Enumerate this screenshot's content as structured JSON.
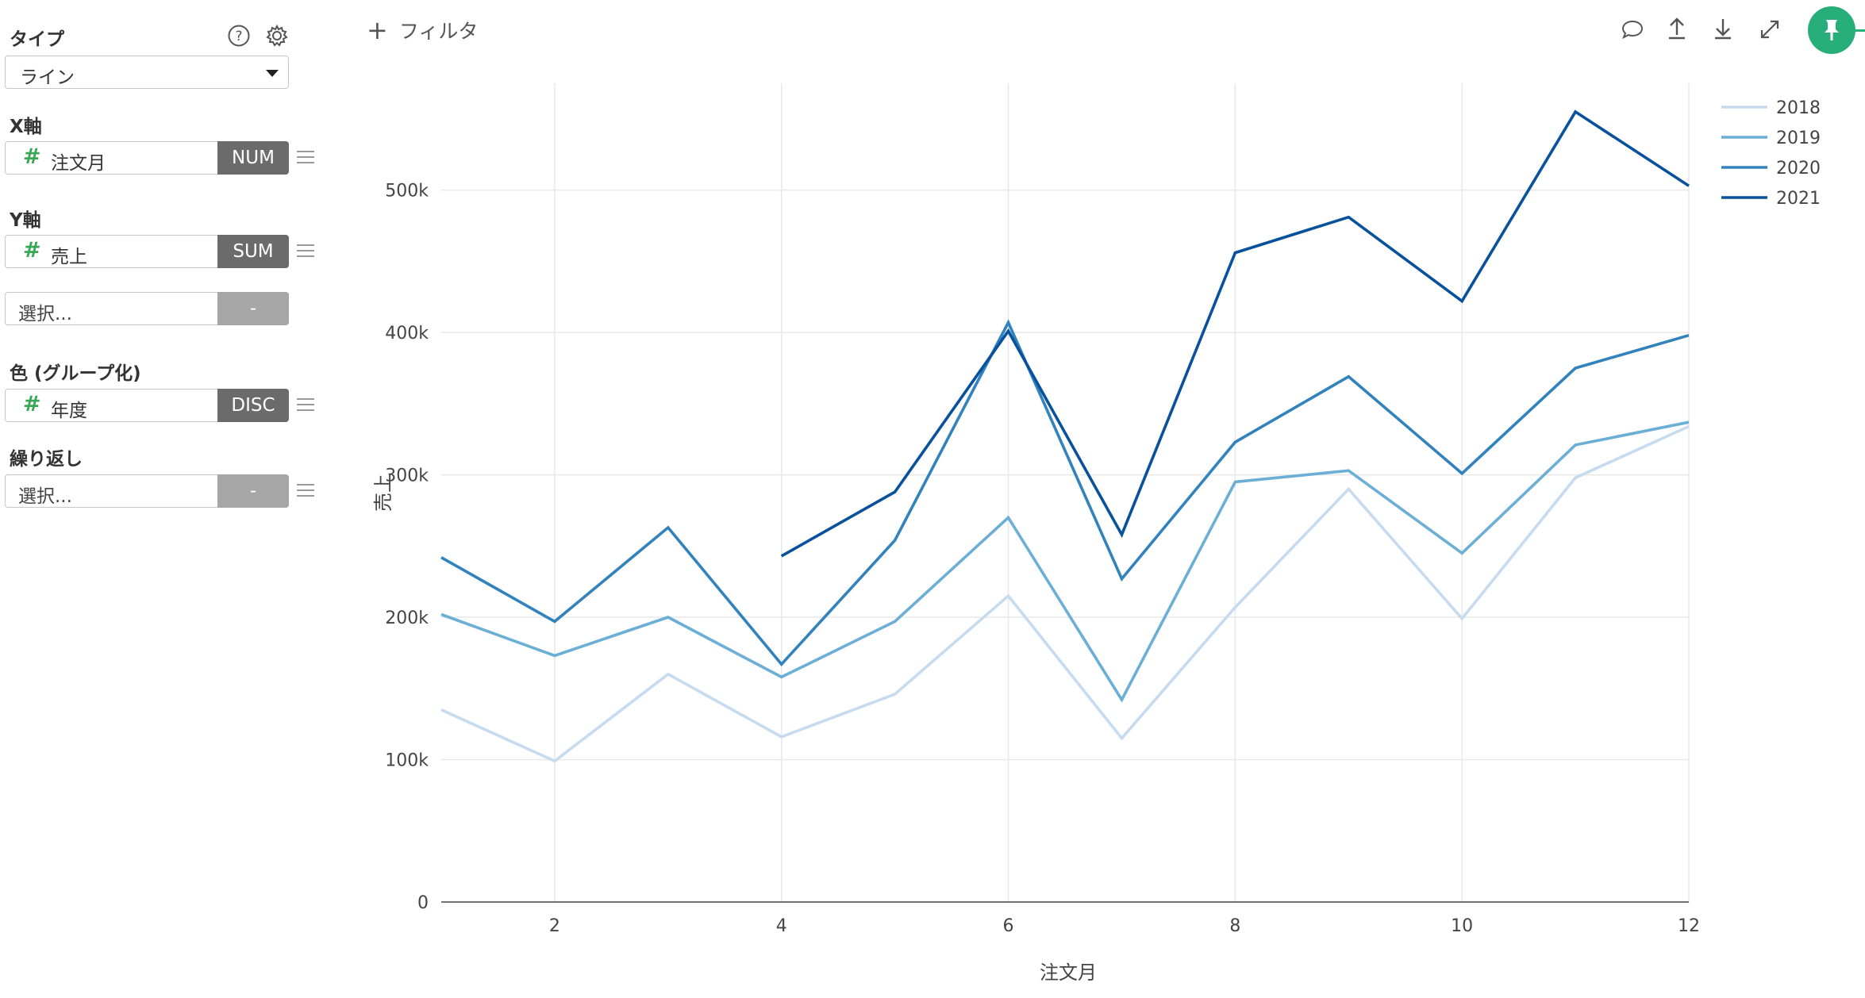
{
  "panel": {
    "type_label": "タイプ",
    "type_value": "ライン",
    "x_axis": {
      "label": "X軸",
      "field": "注文月",
      "agg": "NUM"
    },
    "y_axis": {
      "label": "Y軸",
      "field": "売上",
      "agg": "SUM"
    },
    "y_axis_extra": {
      "placeholder": "選択...",
      "agg": "-"
    },
    "color": {
      "label": "色 (グループ化)",
      "field": "年度",
      "agg": "DISC"
    },
    "repeat": {
      "label": "繰り返し",
      "placeholder": "選択...",
      "agg": "-"
    },
    "icons": [
      "help-icon",
      "gear-icon",
      "drag-handle-icon"
    ]
  },
  "topbar": {
    "filter_label": "フィルタ",
    "icons": [
      "comment-icon",
      "upload-icon",
      "download-icon",
      "expand-icon",
      "pin-icon"
    ],
    "pin_color": "#27ae7a"
  },
  "chart_data": {
    "type": "line",
    "xlabel": "注文月",
    "ylabel": "売上",
    "xlim": [
      1,
      12
    ],
    "ylim": [
      0,
      575000
    ],
    "x_ticks": [
      2,
      4,
      6,
      8,
      10,
      12
    ],
    "y_ticks": [
      0,
      100000,
      200000,
      300000,
      400000,
      500000
    ],
    "y_tick_labels": [
      "0",
      "100k",
      "200k",
      "300k",
      "400k",
      "500k"
    ],
    "grid": true,
    "legend_position": "top-right",
    "series": [
      {
        "name": "2018",
        "color": "#c6dbef",
        "x": [
          1,
          2,
          3,
          4,
          5,
          6,
          7,
          8,
          9,
          10,
          11,
          12
        ],
        "values": [
          135000,
          99000,
          160000,
          116000,
          146000,
          215000,
          115000,
          207000,
          290000,
          199000,
          298000,
          334000
        ]
      },
      {
        "name": "2019",
        "color": "#6baed6",
        "x": [
          1,
          2,
          3,
          4,
          5,
          6,
          7,
          8,
          9,
          10,
          11,
          12
        ],
        "values": [
          202000,
          173000,
          200000,
          158000,
          197000,
          270000,
          142000,
          295000,
          303000,
          245000,
          321000,
          337000
        ]
      },
      {
        "name": "2020",
        "color": "#3182bd",
        "x": [
          1,
          2,
          3,
          4,
          5,
          6,
          7,
          8,
          9,
          10,
          11,
          12
        ],
        "values": [
          242000,
          197000,
          263000,
          167000,
          254000,
          407000,
          227000,
          323000,
          369000,
          301000,
          375000,
          398000
        ]
      },
      {
        "name": "2021",
        "color": "#08519c",
        "x": [
          4,
          5,
          6,
          7,
          8,
          9,
          10,
          11,
          12
        ],
        "values": [
          243000,
          288000,
          401000,
          258000,
          456000,
          481000,
          422000,
          555000,
          503000
        ]
      }
    ]
  }
}
